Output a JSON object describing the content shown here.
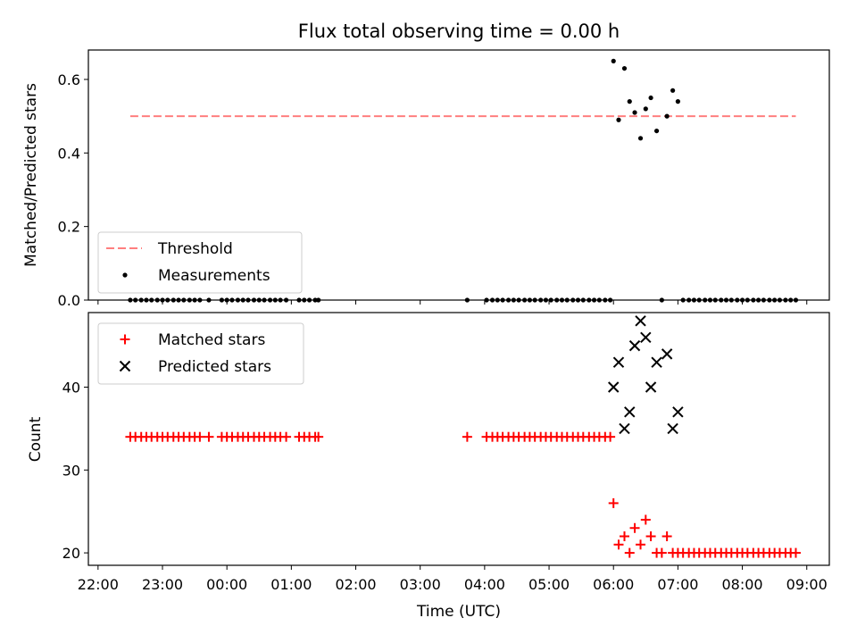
{
  "chart_data": {
    "title": "Flux total observing time = 0.00 h",
    "xlabel": "Time (UTC)",
    "x_unit": "hours (UTC), times after midnight shown > 24",
    "x_ticks": [
      {
        "v": 22,
        "label": "22:00"
      },
      {
        "v": 23,
        "label": "23:00"
      },
      {
        "v": 24,
        "label": "00:00"
      },
      {
        "v": 25,
        "label": "01:00"
      },
      {
        "v": 26,
        "label": "02:00"
      },
      {
        "v": 27,
        "label": "03:00"
      },
      {
        "v": 28,
        "label": "04:00"
      },
      {
        "v": 29,
        "label": "05:00"
      },
      {
        "v": 30,
        "label": "06:00"
      },
      {
        "v": 31,
        "label": "07:00"
      },
      {
        "v": 32,
        "label": "08:00"
      },
      {
        "v": 33,
        "label": "09:00"
      }
    ],
    "xlim": [
      21.85,
      33.35
    ],
    "panels": [
      {
        "type": "scatter",
        "ylabel": "Matched/Predicted stars",
        "ylim": [
          0,
          0.68
        ],
        "y_ticks": [
          {
            "v": 0,
            "label": "0.0"
          },
          {
            "v": 0.2,
            "label": "0.2"
          },
          {
            "v": 0.4,
            "label": "0.4"
          },
          {
            "v": 0.6,
            "label": "0.6"
          }
        ],
        "legend_position": "lower-left",
        "legend": [
          {
            "label": "Threshold",
            "marker": "dash",
            "color": "#ff7f7f"
          },
          {
            "label": "Measurements",
            "marker": "dot",
            "color": "#000000"
          }
        ],
        "threshold": {
          "name": "Threshold",
          "value": 0.5,
          "x_range": [
            22.5,
            32.83
          ],
          "color": "#ff7f7f"
        },
        "measurements": {
          "name": "Measurements",
          "color": "#000000",
          "points": [
            [
              22.5,
              0
            ],
            [
              22.58,
              0
            ],
            [
              22.67,
              0
            ],
            [
              22.75,
              0
            ],
            [
              22.83,
              0
            ],
            [
              22.92,
              0
            ],
            [
              23.0,
              0
            ],
            [
              23.08,
              0
            ],
            [
              23.17,
              0
            ],
            [
              23.25,
              0
            ],
            [
              23.33,
              0
            ],
            [
              23.42,
              0
            ],
            [
              23.5,
              0
            ],
            [
              23.58,
              0
            ],
            [
              23.72,
              0
            ],
            [
              23.92,
              0
            ],
            [
              24.0,
              0
            ],
            [
              24.08,
              0
            ],
            [
              24.17,
              0
            ],
            [
              24.25,
              0
            ],
            [
              24.33,
              0
            ],
            [
              24.42,
              0
            ],
            [
              24.5,
              0
            ],
            [
              24.58,
              0
            ],
            [
              24.67,
              0
            ],
            [
              24.75,
              0
            ],
            [
              24.83,
              0
            ],
            [
              24.92,
              0
            ],
            [
              25.12,
              0
            ],
            [
              25.2,
              0
            ],
            [
              25.28,
              0
            ],
            [
              25.37,
              0
            ],
            [
              25.42,
              0
            ],
            [
              27.73,
              0
            ],
            [
              28.03,
              0
            ],
            [
              28.12,
              0
            ],
            [
              28.2,
              0
            ],
            [
              28.28,
              0
            ],
            [
              28.37,
              0
            ],
            [
              28.45,
              0
            ],
            [
              28.53,
              0
            ],
            [
              28.62,
              0
            ],
            [
              28.7,
              0
            ],
            [
              28.78,
              0
            ],
            [
              28.87,
              0
            ],
            [
              28.95,
              0
            ],
            [
              29.03,
              0
            ],
            [
              29.12,
              0
            ],
            [
              29.2,
              0
            ],
            [
              29.28,
              0
            ],
            [
              29.37,
              0
            ],
            [
              29.45,
              0
            ],
            [
              29.53,
              0
            ],
            [
              29.62,
              0
            ],
            [
              29.7,
              0
            ],
            [
              29.78,
              0
            ],
            [
              29.87,
              0
            ],
            [
              29.95,
              0
            ],
            [
              30.0,
              0.65
            ],
            [
              30.08,
              0.49
            ],
            [
              30.17,
              0.63
            ],
            [
              30.25,
              0.54
            ],
            [
              30.33,
              0.51
            ],
            [
              30.42,
              0.44
            ],
            [
              30.5,
              0.52
            ],
            [
              30.58,
              0.55
            ],
            [
              30.67,
              0.46
            ],
            [
              30.75,
              0.0
            ],
            [
              30.83,
              0.5
            ],
            [
              30.92,
              0.57
            ],
            [
              31.0,
              0.54
            ],
            [
              31.08,
              0
            ],
            [
              31.17,
              0
            ],
            [
              31.25,
              0
            ],
            [
              31.33,
              0
            ],
            [
              31.42,
              0
            ],
            [
              31.5,
              0
            ],
            [
              31.58,
              0
            ],
            [
              31.67,
              0
            ],
            [
              31.75,
              0
            ],
            [
              31.83,
              0
            ],
            [
              31.92,
              0
            ],
            [
              32.0,
              0
            ],
            [
              32.08,
              0
            ],
            [
              32.17,
              0
            ],
            [
              32.25,
              0
            ],
            [
              32.33,
              0
            ],
            [
              32.42,
              0
            ],
            [
              32.5,
              0
            ],
            [
              32.58,
              0
            ],
            [
              32.67,
              0
            ],
            [
              32.75,
              0
            ],
            [
              32.83,
              0
            ]
          ]
        }
      },
      {
        "type": "scatter",
        "ylabel": "Count",
        "ylim": [
          18.5,
          49
        ],
        "y_ticks": [
          {
            "v": 20,
            "label": "20"
          },
          {
            "v": 30,
            "label": "30"
          },
          {
            "v": 40,
            "label": "40"
          }
        ],
        "legend_position": "upper-left",
        "legend": [
          {
            "label": "Matched stars",
            "marker": "plus",
            "color": "#ff0000"
          },
          {
            "label": "Predicted stars",
            "marker": "x",
            "color": "#000000"
          }
        ],
        "matched": {
          "name": "Matched stars",
          "color": "#ff0000",
          "points": [
            [
              22.5,
              34
            ],
            [
              22.58,
              34
            ],
            [
              22.67,
              34
            ],
            [
              22.75,
              34
            ],
            [
              22.83,
              34
            ],
            [
              22.92,
              34
            ],
            [
              23.0,
              34
            ],
            [
              23.08,
              34
            ],
            [
              23.17,
              34
            ],
            [
              23.25,
              34
            ],
            [
              23.33,
              34
            ],
            [
              23.42,
              34
            ],
            [
              23.5,
              34
            ],
            [
              23.58,
              34
            ],
            [
              23.72,
              34
            ],
            [
              23.92,
              34
            ],
            [
              24.0,
              34
            ],
            [
              24.08,
              34
            ],
            [
              24.17,
              34
            ],
            [
              24.25,
              34
            ],
            [
              24.33,
              34
            ],
            [
              24.42,
              34
            ],
            [
              24.5,
              34
            ],
            [
              24.58,
              34
            ],
            [
              24.67,
              34
            ],
            [
              24.75,
              34
            ],
            [
              24.83,
              34
            ],
            [
              24.92,
              34
            ],
            [
              25.12,
              34
            ],
            [
              25.2,
              34
            ],
            [
              25.28,
              34
            ],
            [
              25.37,
              34
            ],
            [
              25.42,
              34
            ],
            [
              27.73,
              34
            ],
            [
              28.03,
              34
            ],
            [
              28.12,
              34
            ],
            [
              28.2,
              34
            ],
            [
              28.28,
              34
            ],
            [
              28.37,
              34
            ],
            [
              28.45,
              34
            ],
            [
              28.53,
              34
            ],
            [
              28.62,
              34
            ],
            [
              28.7,
              34
            ],
            [
              28.78,
              34
            ],
            [
              28.87,
              34
            ],
            [
              28.95,
              34
            ],
            [
              29.03,
              34
            ],
            [
              29.12,
              34
            ],
            [
              29.2,
              34
            ],
            [
              29.28,
              34
            ],
            [
              29.37,
              34
            ],
            [
              29.45,
              34
            ],
            [
              29.53,
              34
            ],
            [
              29.62,
              34
            ],
            [
              29.7,
              34
            ],
            [
              29.78,
              34
            ],
            [
              29.87,
              34
            ],
            [
              29.95,
              34
            ],
            [
              30.0,
              26
            ],
            [
              30.08,
              21
            ],
            [
              30.17,
              22
            ],
            [
              30.25,
              20
            ],
            [
              30.33,
              23
            ],
            [
              30.42,
              21
            ],
            [
              30.5,
              24
            ],
            [
              30.58,
              22
            ],
            [
              30.67,
              20
            ],
            [
              30.75,
              20
            ],
            [
              30.83,
              22
            ],
            [
              30.92,
              20
            ],
            [
              31.0,
              20
            ],
            [
              31.08,
              20
            ],
            [
              31.17,
              20
            ],
            [
              31.25,
              20
            ],
            [
              31.33,
              20
            ],
            [
              31.42,
              20
            ],
            [
              31.5,
              20
            ],
            [
              31.58,
              20
            ],
            [
              31.67,
              20
            ],
            [
              31.75,
              20
            ],
            [
              31.83,
              20
            ],
            [
              31.92,
              20
            ],
            [
              32.0,
              20
            ],
            [
              32.08,
              20
            ],
            [
              32.17,
              20
            ],
            [
              32.25,
              20
            ],
            [
              32.33,
              20
            ],
            [
              32.42,
              20
            ],
            [
              32.5,
              20
            ],
            [
              32.58,
              20
            ],
            [
              32.67,
              20
            ],
            [
              32.75,
              20
            ],
            [
              32.83,
              20
            ]
          ]
        },
        "predicted": {
          "name": "Predicted stars",
          "color": "#000000",
          "points": [
            [
              30.0,
              40
            ],
            [
              30.08,
              43
            ],
            [
              30.17,
              35
            ],
            [
              30.25,
              37
            ],
            [
              30.33,
              45
            ],
            [
              30.42,
              48
            ],
            [
              30.5,
              46
            ],
            [
              30.58,
              40
            ],
            [
              30.67,
              43
            ],
            [
              30.83,
              44
            ],
            [
              30.92,
              35
            ],
            [
              31.0,
              37
            ]
          ]
        }
      }
    ]
  }
}
